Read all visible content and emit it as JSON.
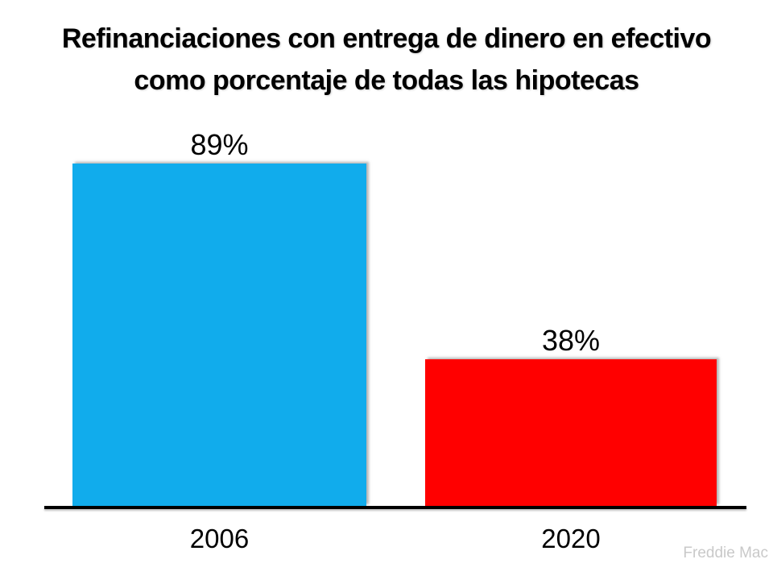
{
  "title": {
    "line1": "Refinanciaciones con entrega de dinero en efectivo",
    "line2": "como porcentaje de todas las hipotecas"
  },
  "watermark": "Freddie Mac",
  "colors": {
    "bar_2006": "#11ACEC",
    "bar_2020": "#FF0000",
    "axis": "#000000",
    "watermark_text": "#C9C9C9"
  },
  "chart_data": {
    "type": "bar",
    "title": "Refinanciaciones con entrega de dinero en efectivo como porcentaje de todas las hipotecas",
    "categories": [
      "2006",
      "2020"
    ],
    "values": [
      89,
      38
    ],
    "value_labels": [
      "89%",
      "38%"
    ],
    "colors": [
      "#11ACEC",
      "#FF0000"
    ],
    "ylim": [
      0,
      100
    ],
    "xlabel": "",
    "ylabel": "",
    "grid": false,
    "legend": false,
    "source": "Freddie Mac"
  }
}
